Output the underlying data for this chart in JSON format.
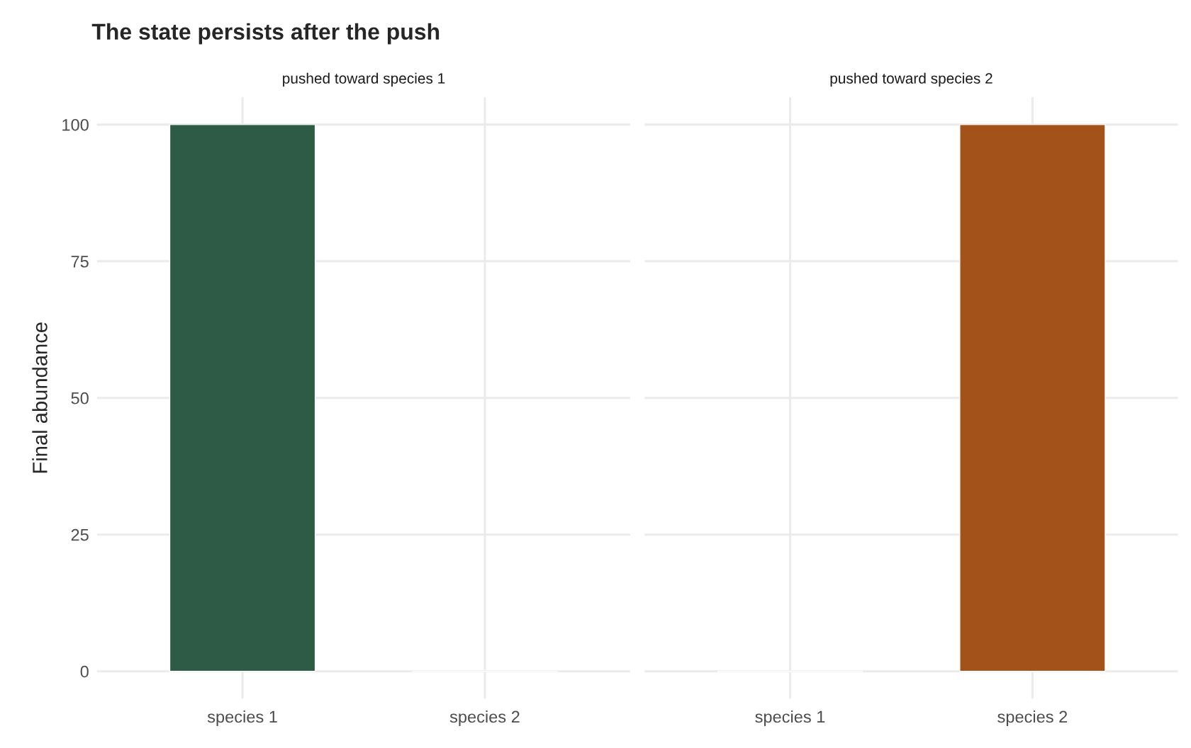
{
  "chart_data": [
    {
      "type": "bar",
      "title": "The state persists after the push",
      "subtitle": "pushed toward species 1",
      "ylabel": "Final abundance",
      "categories": [
        "species 1",
        "species 2"
      ],
      "values": [
        100,
        0
      ],
      "colors": [
        "#2e5b45",
        "#a35219"
      ],
      "ylim": [
        -5,
        105
      ],
      "yticks": [
        0,
        25,
        50,
        75,
        100
      ],
      "grid": true
    },
    {
      "type": "bar",
      "subtitle": "pushed toward species 2",
      "categories": [
        "species 1",
        "species 2"
      ],
      "values": [
        0,
        100
      ],
      "colors": [
        "#2e5b45",
        "#a35219"
      ],
      "ylim": [
        -5,
        105
      ],
      "yticks": [
        0,
        25,
        50,
        75,
        100
      ],
      "grid": true,
      "tick_labels": "x"
    }
  ]
}
